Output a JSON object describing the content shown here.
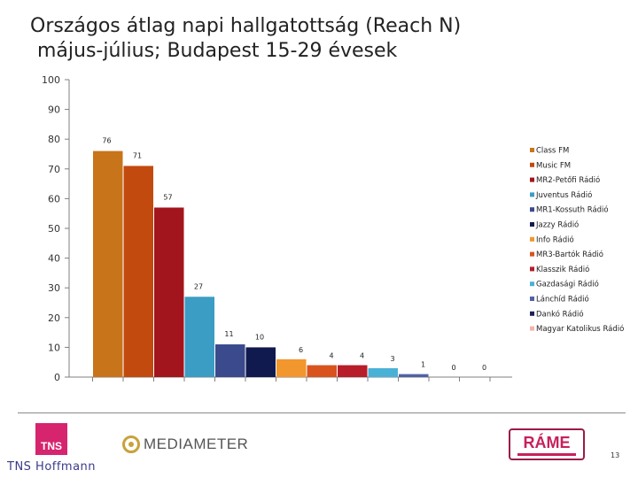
{
  "title": {
    "line1": "Országos átlag napi hallgatottság (Reach N)",
    "line2": "május-július; Budapest 15-29 évesek"
  },
  "chart_data": {
    "type": "bar",
    "categories": [
      "Class FM",
      "Music FM",
      "MR2-Petőfi Rádió",
      "Juventus Rádió",
      "MR1-Kossuth Rádió",
      "Jazzy Rádió",
      "Info Rádió",
      "MR3-Bartók Rádió",
      "Klasszik Rádió",
      "Gazdasági Rádió",
      "Lánchíd Rádió",
      "Dankó Rádió",
      "Magyar Katolikus Rádió"
    ],
    "values": [
      76,
      71,
      57,
      27,
      11,
      10,
      6,
      4,
      4,
      3,
      1,
      0,
      0
    ],
    "colors": [
      "#c8741a",
      "#c24a0e",
      "#a3151c",
      "#3b9cc4",
      "#3b4a8c",
      "#101a4e",
      "#f2962e",
      "#d9531e",
      "#b81d2a",
      "#4ab1d6",
      "#5062a6",
      "#1c2358",
      "#f2b4a8"
    ],
    "ylim": [
      0,
      100
    ],
    "yticks": [
      0,
      10,
      20,
      30,
      40,
      50,
      60,
      70,
      80,
      90,
      100
    ],
    "xlabel": "",
    "ylabel": "",
    "grid": false,
    "legend_position": "right"
  },
  "footer": {
    "tns_logo_text": "TNS",
    "tns_name": "TNS Hoffmann",
    "mediameter_text": "MEDIAMETER",
    "rame_text": "RÁME",
    "page_number": "13"
  }
}
